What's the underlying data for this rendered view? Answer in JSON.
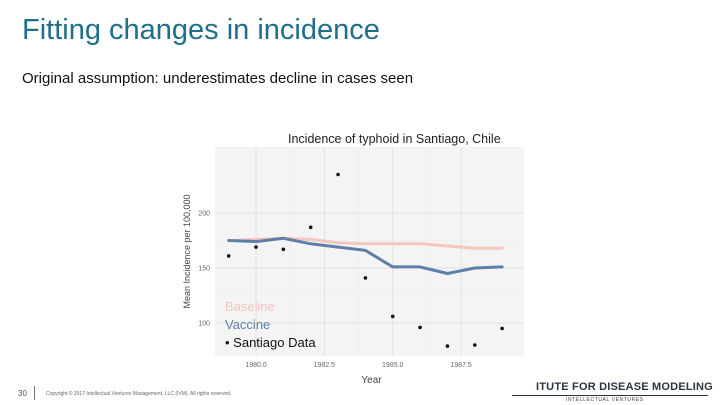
{
  "slide": {
    "title": "Fitting changes in incidence",
    "subtitle": "Original assumption: underestimates decline in cases seen",
    "page_number": "30",
    "copyright": "Copyright © 2017 Intellectual Ventures Management, LLC (IVM). All rights reserved.",
    "logo_text": "ITUTE FOR DISEASE MODELING",
    "logo_subtext": "INTELLECTUAL VENTURES"
  },
  "chart_data": {
    "type": "line",
    "title": "Incidence of typhoid in Santiago, Chile",
    "xlabel": "Year",
    "ylabel": "Mean Incidence per 100,000",
    "xlim": [
      1978.5,
      1989.8
    ],
    "ylim": [
      70,
      260
    ],
    "x_ticks": [
      1980.0,
      1982.5,
      1985.0,
      1987.5
    ],
    "x_tick_labels": [
      "1980.0",
      "1982.5",
      "1985.0",
      "1987.5"
    ],
    "y_ticks": [
      100,
      150,
      200
    ],
    "y_tick_labels": [
      "100",
      "150",
      "200"
    ],
    "grid": true,
    "series": [
      {
        "name": "Baseline",
        "color": "#f3c6bf",
        "kind": "line",
        "x": [
          1979,
          1980,
          1981,
          1982,
          1983,
          1984,
          1985,
          1986,
          1987,
          1988,
          1989
        ],
        "y": [
          175,
          176,
          177,
          176,
          173,
          172,
          172,
          172,
          170,
          168,
          168
        ]
      },
      {
        "name": "Vaccine",
        "color": "#5f7fa8",
        "kind": "line",
        "x": [
          1979,
          1980,
          1981,
          1982,
          1983,
          1984,
          1985,
          1986,
          1987,
          1988,
          1989
        ],
        "y": [
          175,
          174,
          177,
          172,
          169,
          166,
          151,
          151,
          145,
          150,
          151
        ]
      },
      {
        "name": "Santiago Data",
        "color": "#111111",
        "kind": "scatter",
        "x": [
          1979,
          1980,
          1981,
          1982,
          1983,
          1984,
          1985,
          1986,
          1987,
          1988,
          1989
        ],
        "y": [
          161,
          169,
          167,
          187,
          235,
          141,
          106,
          96,
          79,
          80,
          95
        ]
      }
    ],
    "legend": [
      {
        "label": "Baseline",
        "color": "#f3c6bf"
      },
      {
        "label": "Vaccine",
        "color": "#5f7fa8"
      },
      {
        "label": "• Santiago Data",
        "color": "#111111"
      }
    ],
    "legend_position": "bottom-left"
  }
}
